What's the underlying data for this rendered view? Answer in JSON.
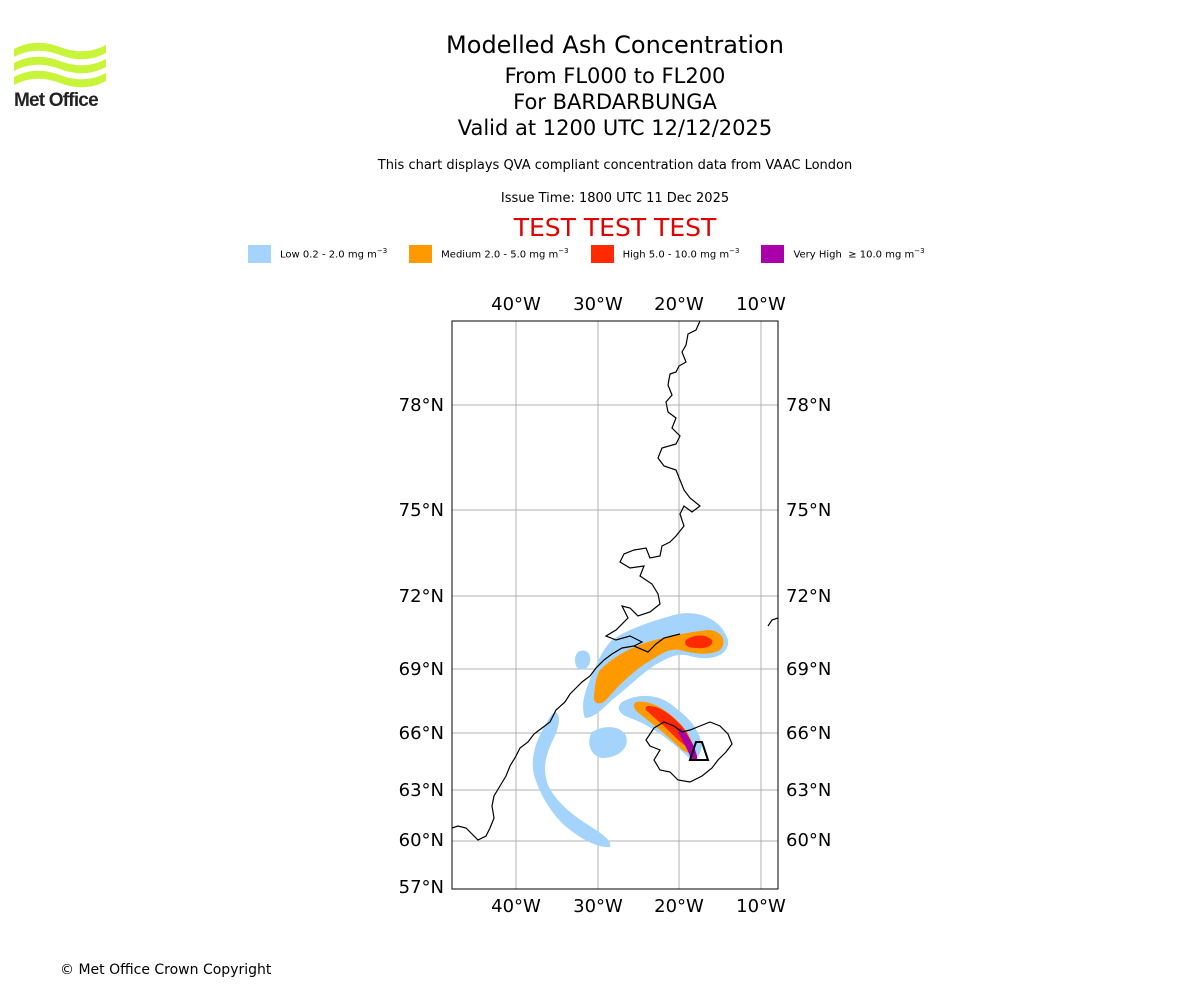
{
  "logo": {
    "text": "Met Office",
    "color": "#c8f53a"
  },
  "header": {
    "title": "Modelled Ash Concentration",
    "levels": "From FL000 to FL200",
    "volcano": "For BARDARBUNGA",
    "valid": "Valid at 1200 UTC 12/12/2025",
    "subtitle": "This chart displays QVA compliant concentration data from VAAC London",
    "issue_time": "Issue Time: 1800 UTC 11 Dec 2025",
    "test_banner": "TEST TEST TEST"
  },
  "legend": [
    {
      "label": "Low 0.2 - 2.0 mg m",
      "color": "#a4d4fb"
    },
    {
      "label": "Medium 2.0 - 5.0 mg m",
      "color": "#ff9900"
    },
    {
      "label": "High 5.0 - 10.0 mg m",
      "color": "#ff2a00"
    },
    {
      "label": "Very High",
      "extra": "≥ 10.0 mg m",
      "color": "#aa00aa"
    }
  ],
  "legend_unit_exp": "−3",
  "map": {
    "lon_ticks": [
      "40°W",
      "30°W",
      "20°W",
      "10°W"
    ],
    "lat_ticks": [
      "78°N",
      "75°N",
      "72°N",
      "69°N",
      "66°N",
      "63°N",
      "60°N",
      "57°N"
    ],
    "volcano_marker": "bardarbunga"
  },
  "footer": {
    "copyright": "© Met Office Crown Copyright"
  }
}
